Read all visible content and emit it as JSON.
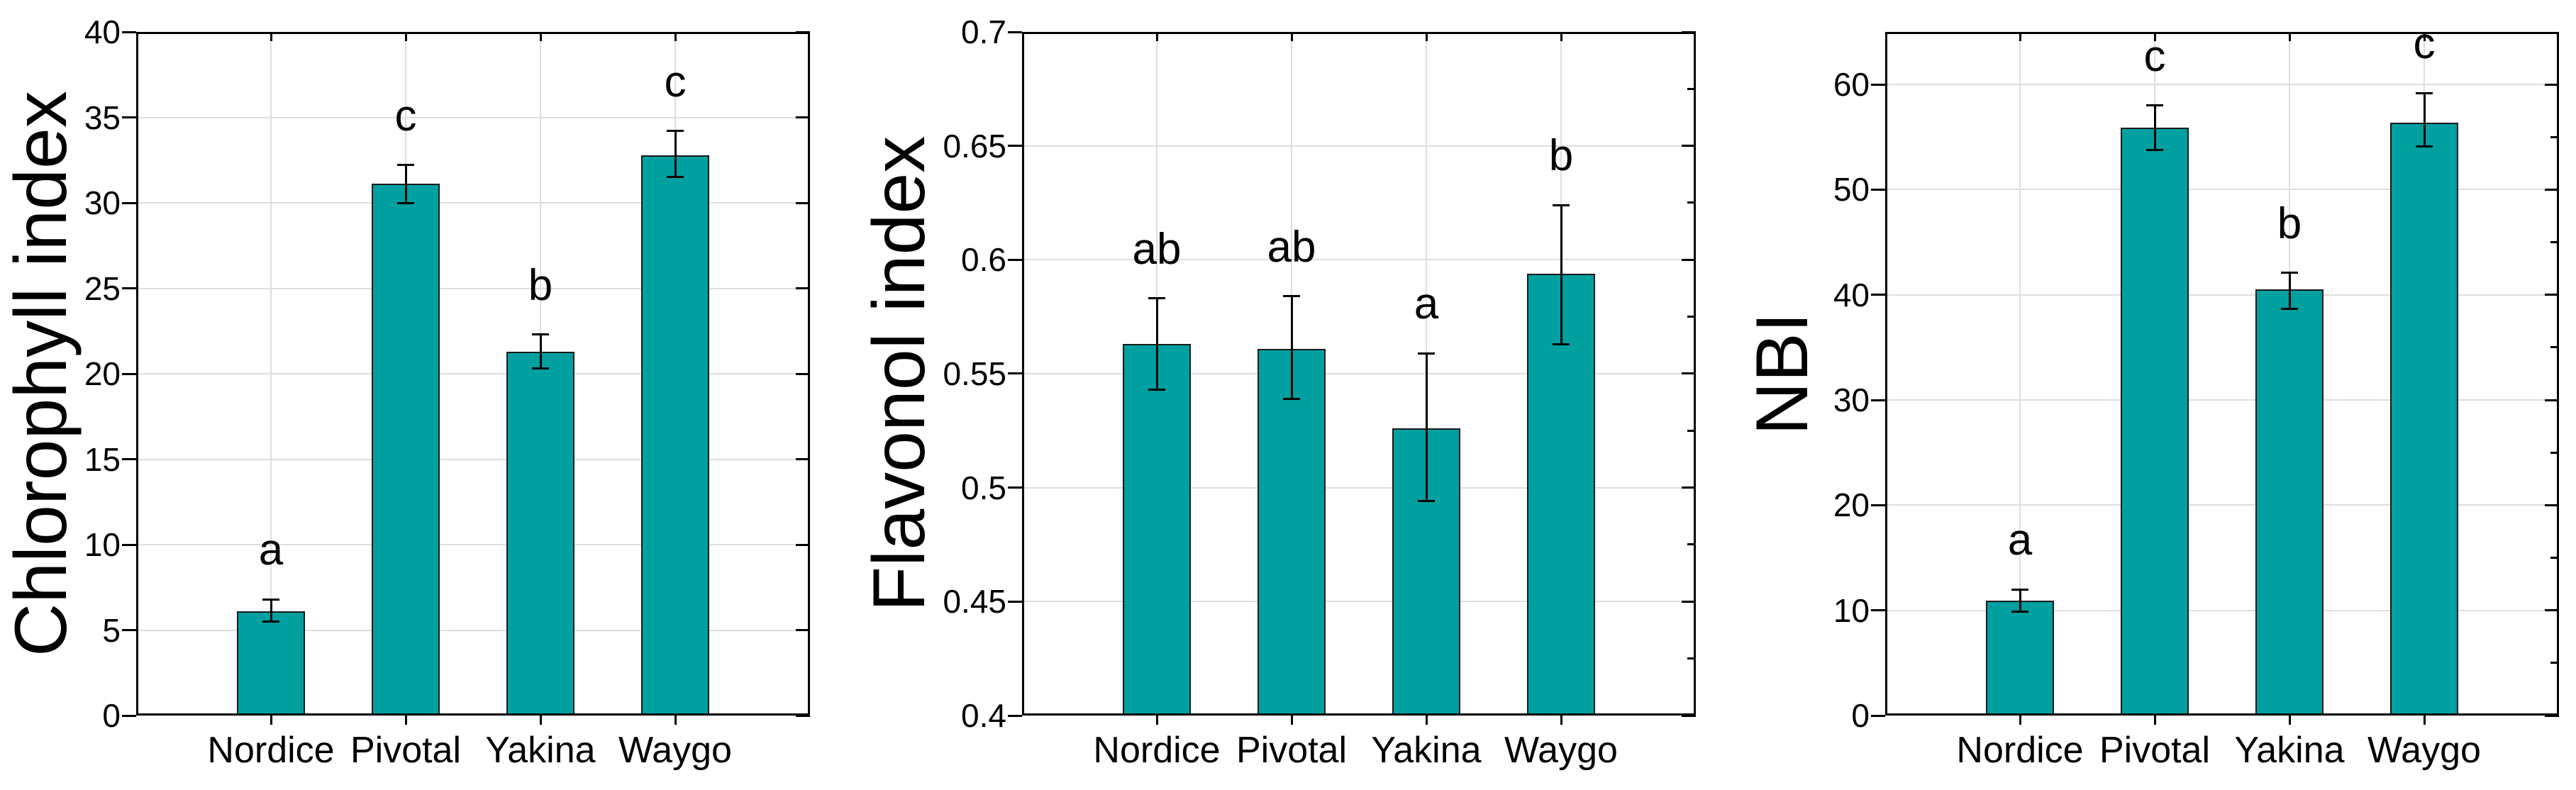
{
  "style": {
    "background": "#ffffff",
    "bar_color": "#00A0A0",
    "bar_border_color": "#1a1a1a",
    "grid_color": "#dedede",
    "axis_color": "#000000",
    "error_bar_color": "#000000",
    "text_color": "#000000"
  },
  "chart_data": [
    {
      "type": "bar",
      "title": "",
      "ylabel": "Chlorophyll index",
      "xlabel": "",
      "categories": [
        "Nordice",
        "Pivotal",
        "Yakina",
        "Waygo"
      ],
      "values": [
        6.1,
        31.1,
        21.3,
        32.8
      ],
      "error_low": [
        5.5,
        30.0,
        20.3,
        31.5
      ],
      "error_high": [
        6.8,
        32.2,
        22.3,
        34.2
      ],
      "sig_letters": [
        "a",
        "c",
        "b",
        "c"
      ],
      "ylim": [
        0,
        40
      ],
      "ytick_values": [
        0,
        5,
        10,
        15,
        20,
        25,
        30,
        35,
        40
      ],
      "ytick_labels": [
        "0",
        "5",
        "10",
        "15",
        "20",
        "25",
        "30",
        "35",
        "40"
      ],
      "minor_tick_step": null,
      "grid": true,
      "legend": false
    },
    {
      "type": "bar",
      "title": "",
      "ylabel": "Flavonol index",
      "xlabel": "",
      "categories": [
        "Nordice",
        "Pivotal",
        "Yakina",
        "Waygo"
      ],
      "values": [
        0.563,
        0.561,
        0.526,
        0.594
      ],
      "error_low": [
        0.543,
        0.539,
        0.494,
        0.563
      ],
      "error_high": [
        0.583,
        0.584,
        0.559,
        0.624
      ],
      "sig_letters": [
        "ab",
        "ab",
        "a",
        "b"
      ],
      "ylim": [
        0.4,
        0.7
      ],
      "ytick_values": [
        0.4,
        0.45,
        0.5,
        0.55,
        0.6,
        0.65,
        0.7
      ],
      "ytick_labels": [
        "0.4",
        "0.45",
        "0.5",
        "0.55",
        "0.6",
        "0.65",
        "0.7"
      ],
      "minor_tick_step": 0.025,
      "grid": true,
      "legend": false
    },
    {
      "type": "bar",
      "title": "",
      "ylabel": "NBI",
      "xlabel": "",
      "categories": [
        "Nordice",
        "Pivotal",
        "Yakina",
        "Waygo"
      ],
      "values": [
        10.9,
        55.9,
        40.5,
        56.4
      ],
      "error_low": [
        9.9,
        53.8,
        38.7,
        54.1
      ],
      "error_high": [
        12.0,
        58.0,
        42.1,
        59.2
      ],
      "sig_letters": [
        "a",
        "c",
        "b",
        "c"
      ],
      "ylim": [
        0,
        65
      ],
      "ytick_values": [
        0,
        10,
        20,
        30,
        40,
        50,
        60
      ],
      "ytick_labels": [
        "0",
        "10",
        "20",
        "30",
        "40",
        "50",
        "60"
      ],
      "minor_tick_step": 5,
      "grid": true,
      "legend": false
    }
  ]
}
